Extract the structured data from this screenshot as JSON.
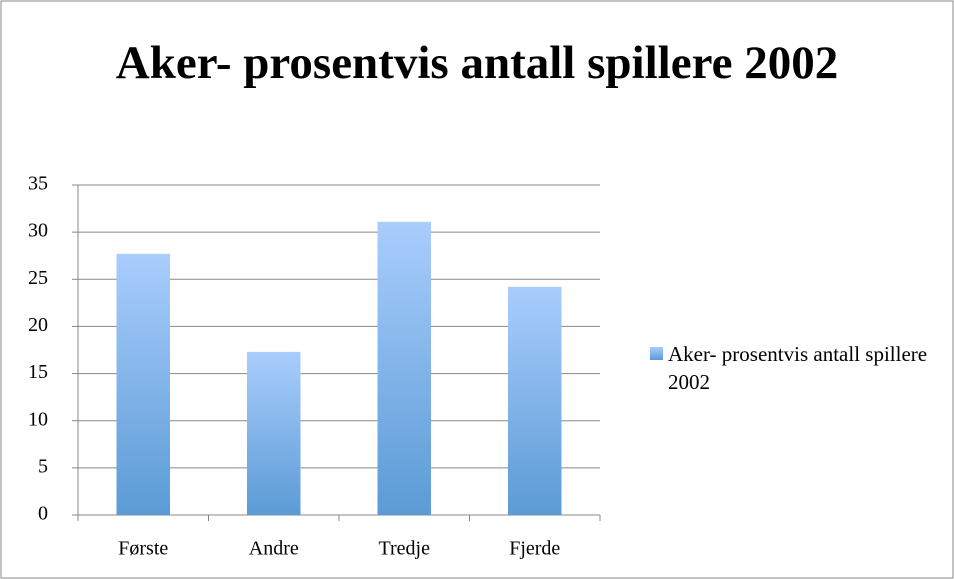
{
  "chart_data": {
    "type": "bar",
    "title": "Aker- prosentvis antall spillere 2002",
    "categories": [
      "Første",
      "Andre",
      "Tredje",
      "Fjerde"
    ],
    "series": [
      {
        "name": "Aker- prosentvis antall spillere 2002",
        "color": "#5b9bd5",
        "values": [
          27.7,
          17.3,
          31.1,
          24.2
        ]
      }
    ],
    "ylim": [
      0,
      35
    ],
    "yticks": [
      0,
      5,
      10,
      15,
      20,
      25,
      30,
      35
    ],
    "grid": true,
    "legend": "right"
  }
}
